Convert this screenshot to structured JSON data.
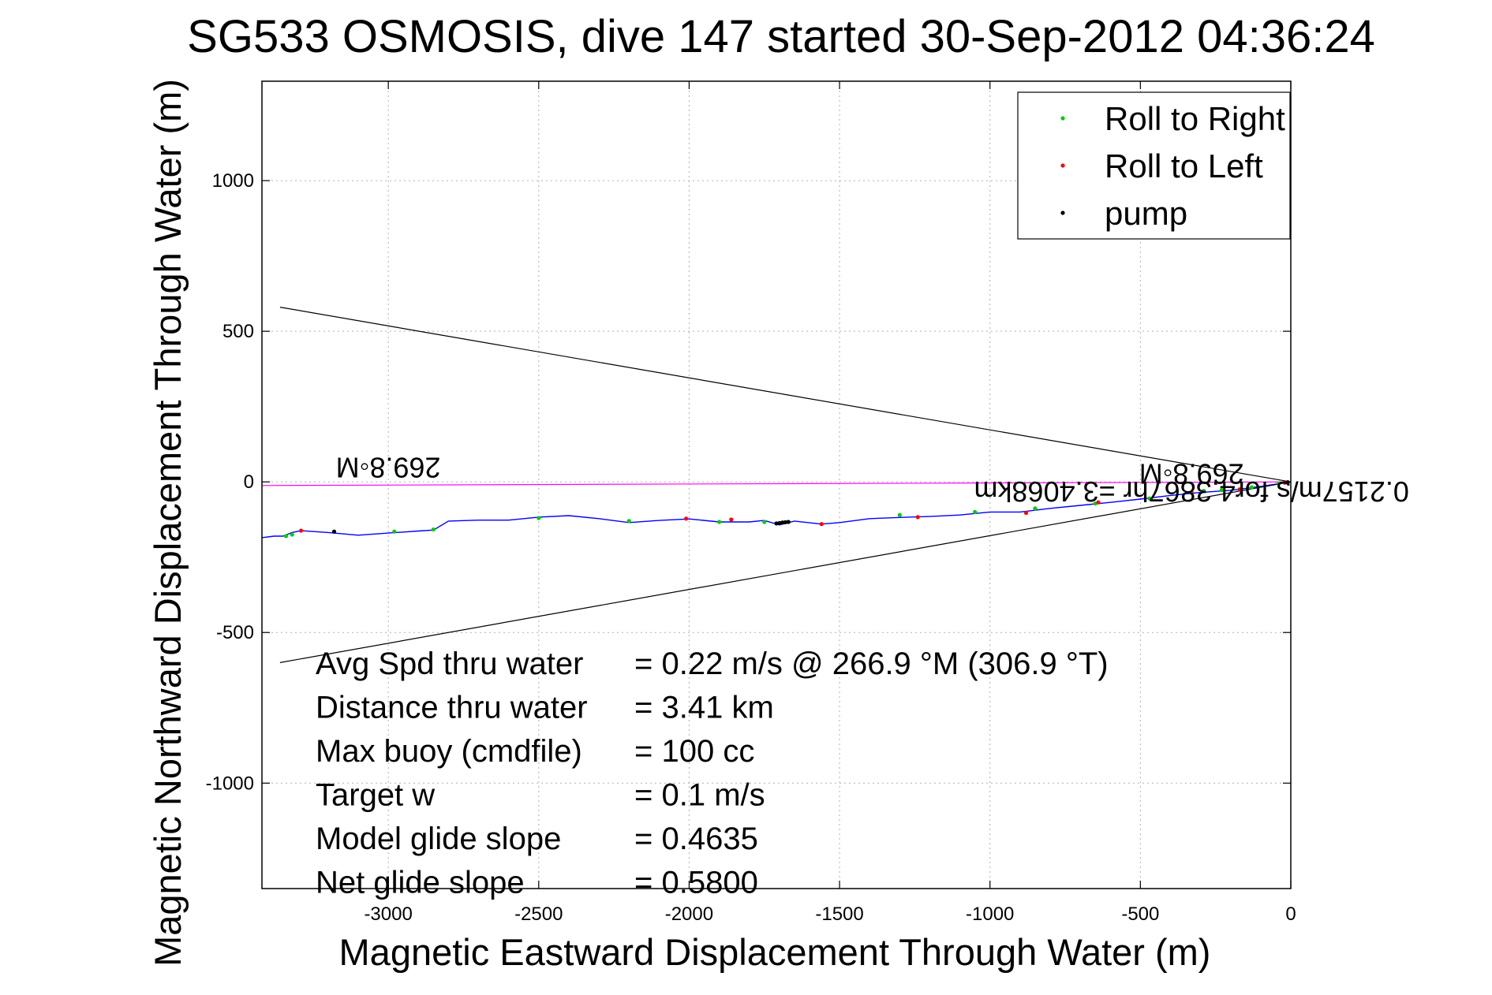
{
  "chart_data": {
    "type": "line",
    "title": "SG533 OSMOSIS, dive 147 started 30-Sep-2012 04:36:24",
    "xlabel": "Magnetic Eastward Displacement Through Water (m)",
    "ylabel": "Magnetic Northward Displacement Through Water (m)",
    "xlim": [
      -3420,
      0
    ],
    "ylim": [
      -1350,
      1330
    ],
    "grid": true,
    "legend_placement": "top-right",
    "x_ticks": [
      -3000,
      -2500,
      -2000,
      -1500,
      -1000,
      -500,
      0
    ],
    "x_tick_labels": [
      "-3000",
      "-2500",
      "-2000",
      "-1500",
      "-1000",
      "-500",
      "0"
    ],
    "y_ticks": [
      1000,
      500,
      0,
      -500,
      -1000
    ],
    "y_tick_labels": [
      "1000",
      "500",
      "0",
      "-500",
      "-1000"
    ],
    "legend": [
      {
        "label": "Roll to Right",
        "color": "#00cc00"
      },
      {
        "label": "Roll to Left",
        "color": "#ff0000"
      },
      {
        "label": "pump",
        "color": "#000000"
      }
    ],
    "series": [
      {
        "role": "track",
        "color": "#0000ff",
        "x": [
          0,
          -100,
          -200,
          -300,
          -400,
          -500,
          -600,
          -700,
          -800,
          -900,
          -1000,
          -1100,
          -1200,
          -1300,
          -1400,
          -1500,
          -1560,
          -1650,
          -1700,
          -1750,
          -1800,
          -1900,
          -2000,
          -2100,
          -2200,
          -2300,
          -2400,
          -2500,
          -2600,
          -2700,
          -2800,
          -2850,
          -2900,
          -3000,
          -3100,
          -3200,
          -3290,
          -3320,
          -3350,
          -3380,
          -3420
        ],
        "y": [
          0,
          -15,
          -28,
          -35,
          -45,
          -57,
          -68,
          -78,
          -88,
          -100,
          -100,
          -110,
          -115,
          -118,
          -122,
          -135,
          -140,
          -130,
          -143,
          -128,
          -133,
          -133,
          -123,
          -128,
          -135,
          -122,
          -112,
          -117,
          -127,
          -127,
          -130,
          -160,
          -163,
          -170,
          -177,
          -168,
          -162,
          -168,
          -180,
          -180,
          -185
        ]
      },
      {
        "role": "heading-line",
        "color": "#ff00ff",
        "x": [
          0,
          -3420
        ],
        "y": [
          0,
          -12
        ]
      },
      {
        "role": "cone-upper",
        "color": "#000000",
        "x": [
          0,
          -3360
        ],
        "y": [
          0,
          580
        ]
      },
      {
        "role": "cone-lower",
        "color": "#000000",
        "x": [
          0,
          -3360
        ],
        "y": [
          0,
          -600
        ]
      }
    ],
    "markers": {
      "roll_right": {
        "x": [
          -40,
          -130,
          -230,
          -290,
          -330,
          -470,
          -650,
          -850,
          -1050,
          -1300,
          -1750,
          -1900,
          -2200,
          -2500,
          -2850,
          -2980,
          -3320,
          -3340
        ],
        "y": [
          -5,
          -18,
          -27,
          -30,
          -37,
          -55,
          -72,
          -88,
          -100,
          -110,
          -133,
          -133,
          -130,
          -120,
          -158,
          -165,
          -175,
          -180
        ]
      },
      "roll_left": {
        "x": [
          -20,
          -170,
          -330,
          -640,
          -880,
          -1240,
          -1560,
          -1860,
          -2010,
          -3290
        ],
        "y": [
          -3,
          -25,
          -35,
          -68,
          -103,
          -117,
          -140,
          -125,
          -122,
          -162
        ]
      },
      "pump": {
        "x": [
          -10,
          -1710,
          -1700,
          -1690,
          -1680,
          -1670,
          -3180
        ],
        "y": [
          -1,
          -138,
          -137,
          -135,
          -134,
          -133,
          -165
        ]
      }
    },
    "annotations": [
      {
        "text": "269.8◦M",
        "x": -3000,
        "y": 80,
        "rotated": true
      },
      {
        "text": "269.8◦M",
        "x": -330,
        "y": 60,
        "rotated": true
      },
      {
        "text": "0.2157m/s for4.3867hr =3.4068km",
        "x": -330,
        "y": 0,
        "rotated": true
      }
    ],
    "stats": [
      {
        "label": "Avg Spd thru water",
        "value": "=  0.22 m/s @ 266.9 °M (306.9 °T)"
      },
      {
        "label": "Distance thru water",
        "value": "=  3.41 km"
      },
      {
        "label": "Max buoy (cmdfile)",
        "value": "= 100 cc"
      },
      {
        "label": "Target w",
        "value": "= 0.1 m/s"
      },
      {
        "label": "Model glide slope",
        "value": "= 0.4635"
      },
      {
        "label": "Net glide slope",
        "value": "= 0.5800"
      }
    ]
  }
}
